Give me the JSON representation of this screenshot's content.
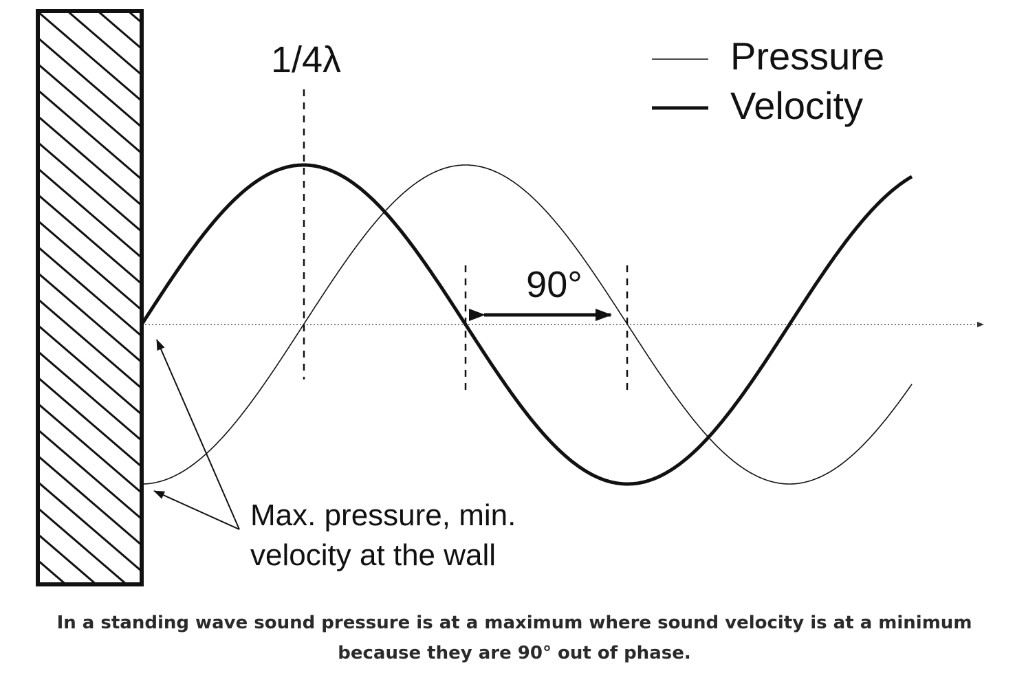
{
  "diagram": {
    "quarter_wavelength_label": "1/4λ",
    "phase_label": "90°",
    "annotation_line1": "Max. pressure, min.",
    "annotation_line2": "velocity at the wall",
    "legend": {
      "pressure_label": "Pressure",
      "velocity_label": "Velocity"
    }
  },
  "caption": "In a standing wave sound pressure is at a maximum where sound velocity is at a minimum because they are 90° out of phase."
}
